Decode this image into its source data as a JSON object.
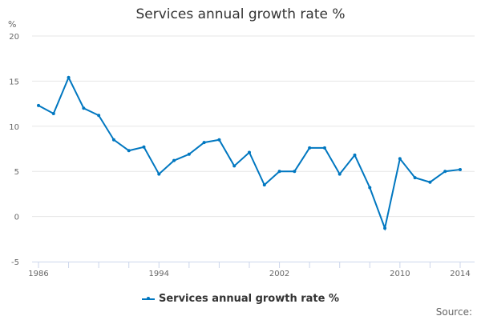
{
  "chart_data": {
    "type": "line",
    "title": "Services annual growth rate %",
    "ylabel": "%",
    "xlabel": "",
    "ylim": [
      -5,
      20
    ],
    "yticks": [
      -5,
      0,
      5,
      10,
      15,
      20
    ],
    "xlim": [
      1986,
      2014
    ],
    "xtick_labels": [
      1986,
      1994,
      2002,
      2010,
      2014
    ],
    "grid": true,
    "legend": "bottom",
    "color": "#0077c0",
    "x": [
      1986,
      1987,
      1988,
      1989,
      1990,
      1991,
      1992,
      1993,
      1994,
      1995,
      1996,
      1997,
      1998,
      1999,
      2000,
      2001,
      2002,
      2003,
      2004,
      2005,
      2006,
      2007,
      2008,
      2009,
      2010,
      2011,
      2012,
      2013,
      2014
    ],
    "series": [
      {
        "name": "Services annual growth rate %",
        "values": [
          12.3,
          11.4,
          15.4,
          12.0,
          11.2,
          8.5,
          7.3,
          7.7,
          4.7,
          6.2,
          6.9,
          8.2,
          8.5,
          5.6,
          7.1,
          3.5,
          5.0,
          5.0,
          7.6,
          7.6,
          4.7,
          6.8,
          3.2,
          -1.3,
          6.4,
          4.3,
          3.8,
          5.0,
          5.2
        ]
      }
    ]
  },
  "source_label": "Source:"
}
